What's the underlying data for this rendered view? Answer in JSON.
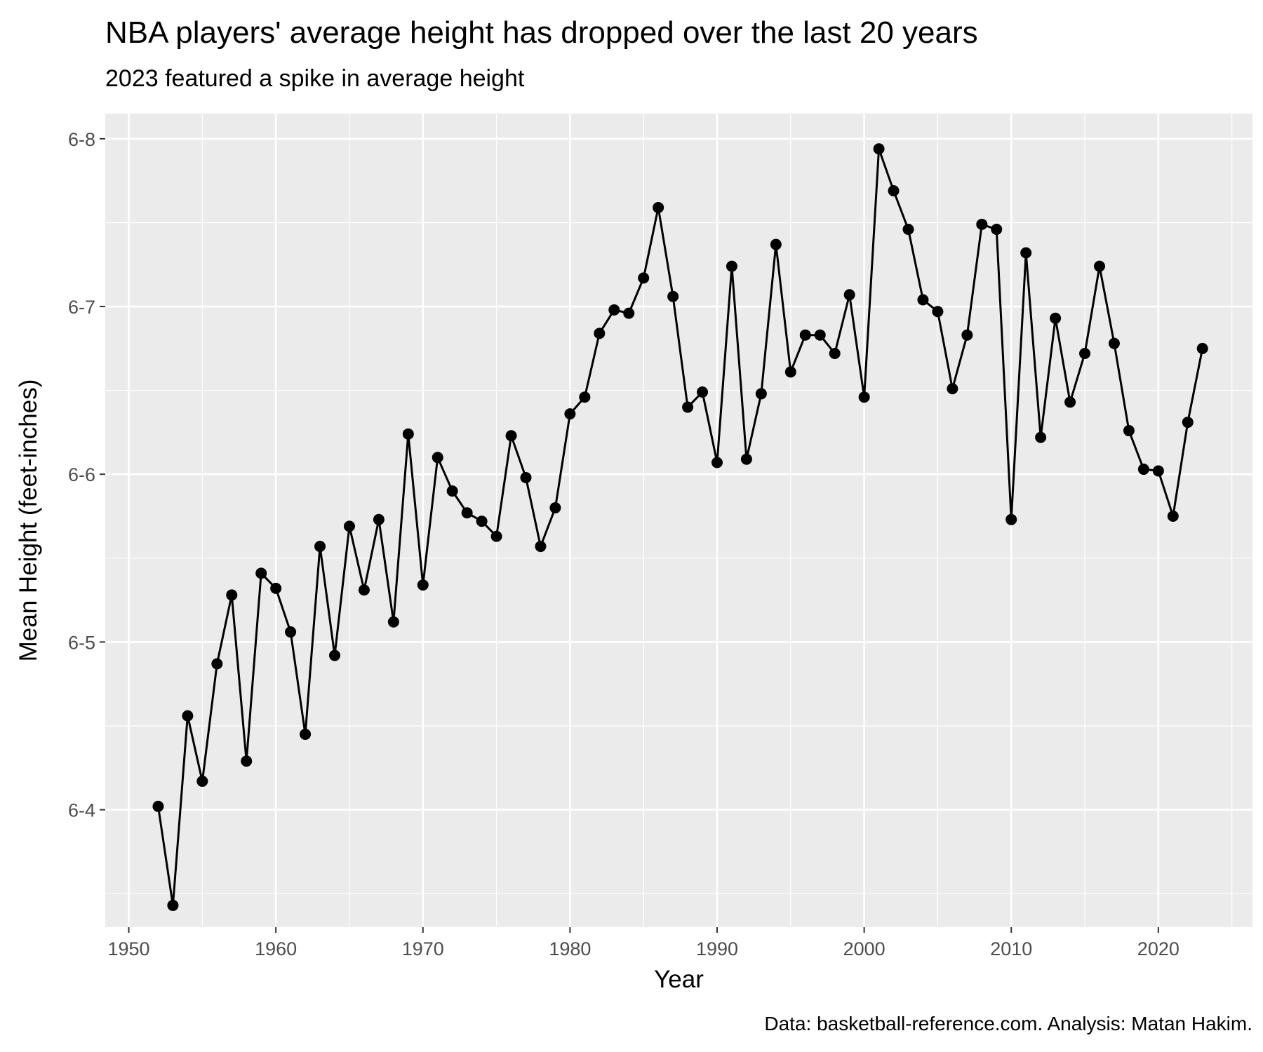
{
  "chart_data": {
    "type": "line",
    "title": "NBA players' average height has dropped over the last 20 years",
    "subtitle": "2023 featured a spike in average height",
    "caption": "Data: basketball-reference.com. Analysis: Matan Hakim.",
    "xlabel": "Year",
    "ylabel": "Mean Height (feet-inches)",
    "x_ticks": [
      1950,
      1960,
      1970,
      1980,
      1990,
      2000,
      2010,
      2020
    ],
    "y_ticks": [
      {
        "value": 76,
        "label": "6-4"
      },
      {
        "value": 77,
        "label": "6-5"
      },
      {
        "value": 78,
        "label": "6-6"
      },
      {
        "value": 79,
        "label": "6-7"
      },
      {
        "value": 80,
        "label": "6-8"
      }
    ],
    "xlim": [
      1948.4,
      2026.4
    ],
    "ylim": [
      75.3,
      80.15
    ],
    "grid": true,
    "markers": true,
    "line_color": "#000000",
    "panel_color": "#EBEBEB",
    "grid_color": "#FFFFFF",
    "x": [
      1952,
      1953,
      1954,
      1955,
      1956,
      1957,
      1958,
      1959,
      1960,
      1961,
      1962,
      1963,
      1964,
      1965,
      1966,
      1967,
      1968,
      1969,
      1970,
      1971,
      1972,
      1973,
      1974,
      1975,
      1976,
      1977,
      1978,
      1979,
      1980,
      1981,
      1982,
      1983,
      1984,
      1985,
      1986,
      1987,
      1988,
      1989,
      1990,
      1991,
      1992,
      1993,
      1994,
      1995,
      1996,
      1997,
      1998,
      1999,
      2000,
      2001,
      2002,
      2003,
      2004,
      2005,
      2006,
      2007,
      2008,
      2009,
      2010,
      2011,
      2012,
      2013,
      2014,
      2015,
      2016,
      2017,
      2018,
      2019,
      2020,
      2021,
      2022,
      2023
    ],
    "y": [
      76.02,
      75.43,
      76.56,
      76.17,
      76.87,
      77.28,
      76.29,
      77.41,
      77.32,
      77.06,
      76.45,
      77.57,
      76.92,
      77.69,
      77.31,
      77.73,
      77.12,
      78.24,
      77.34,
      78.1,
      77.9,
      77.77,
      77.72,
      77.63,
      78.23,
      77.98,
      77.57,
      77.8,
      78.36,
      78.46,
      78.84,
      78.98,
      78.96,
      79.17,
      79.59,
      79.06,
      78.4,
      78.49,
      78.07,
      79.24,
      78.09,
      78.48,
      79.37,
      78.61,
      78.83,
      78.83,
      78.72,
      79.07,
      78.46,
      79.94,
      79.69,
      79.46,
      79.04,
      78.97,
      78.51,
      78.83,
      79.49,
      79.46,
      77.73,
      79.32,
      78.22,
      78.93,
      78.43,
      78.72,
      79.24,
      78.78,
      78.26,
      78.03,
      78.02,
      77.75,
      78.31,
      78.75
    ]
  }
}
